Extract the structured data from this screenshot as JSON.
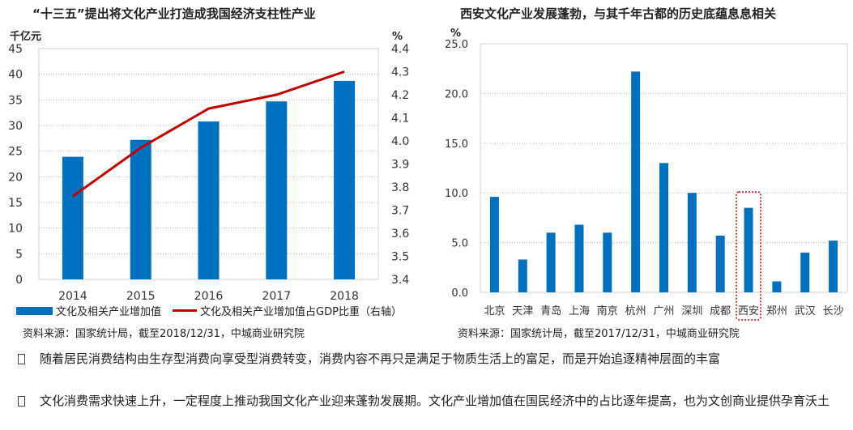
{
  "chart_data": [
    {
      "type": "bar+line",
      "title": "“十三五”提出将文化产业打造成我国经济支柱性产业",
      "categories": [
        "2014",
        "2015",
        "2016",
        "2017",
        "2018"
      ],
      "ylabel_left": "千亿元",
      "ylabel_right": "%",
      "ylim_left": [
        0,
        45
      ],
      "yticks_left": [
        "0",
        "5",
        "10",
        "15",
        "20",
        "25",
        "30",
        "35",
        "40",
        "45"
      ],
      "ylim_right": [
        3.4,
        4.4
      ],
      "yticks_right": [
        "3.4",
        "3.5",
        "3.6",
        "3.7",
        "3.8",
        "3.9",
        "4.0",
        "4.1",
        "4.2",
        "4.3",
        "4.4"
      ],
      "grid": true,
      "legend": "bottom",
      "series": [
        {
          "name": "文化及相关产业增加值",
          "type": "bar",
          "axis": "left",
          "color": "#0070c0",
          "values": [
            23.9,
            27.2,
            30.8,
            34.7,
            38.7
          ]
        },
        {
          "name": "文化及相关产业增加值占GDP比重（右轴）",
          "type": "line",
          "axis": "right",
          "color": "#c00000",
          "values": [
            3.76,
            3.97,
            4.14,
            4.2,
            4.3
          ]
        }
      ],
      "source": "资料来源：国家统计局，截至2018/12/31，中城商业研究院"
    },
    {
      "type": "bar",
      "title": "西安文化产业发展蓬勃，与其千年古都的历史底蕴息息相关",
      "categories": [
        "北京",
        "天津",
        "青岛",
        "上海",
        "南京",
        "杭州",
        "广州",
        "深圳",
        "成都",
        "西安",
        "郑州",
        "武汉",
        "长沙"
      ],
      "values": [
        9.6,
        3.3,
        6.0,
        6.8,
        6.0,
        22.2,
        13.0,
        10.0,
        5.7,
        8.5,
        1.1,
        4.0,
        5.2
      ],
      "ylabel": "%",
      "ylim": [
        0,
        25
      ],
      "yticks": [
        "0.0",
        "5.0",
        "10.0",
        "15.0",
        "20.0",
        "25.0"
      ],
      "grid": true,
      "color": "#0070c0",
      "highlight": "西安",
      "highlight_color": "#c00000",
      "source": "资料来源：国家统计局，截至2017/12/31，中城商业研究院"
    }
  ],
  "bullets": [
    "随着居民消费结构由生存型消费向享受型消费转变，消费内容不再只是满足于物质生活上的富足，而是开始追逐精神层面的丰富",
    "文化消费需求快速上升，一定程度上推动我国文化产业迎来蓬勃发展期。文化产业增加值在国民经济中的占比逐年提高，也为文创商业提供孕育沃土"
  ]
}
